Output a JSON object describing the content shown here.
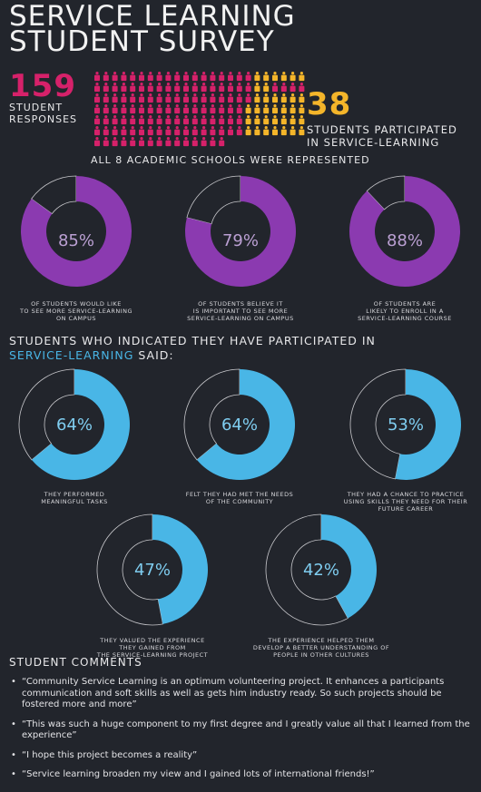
{
  "title": [
    "SERVICE LEARNING",
    "STUDENT SURVEY"
  ],
  "responses": {
    "number": "159",
    "label_1": "STUDENT",
    "label_2": "RESPONSES",
    "color": "#d6216a"
  },
  "participated": {
    "number": "38",
    "label_1": "STUDENTS PARTICIPATED",
    "label_2": "IN SERVICE-LEARNING",
    "color": "#f4b52a"
  },
  "schools_note": "ALL 8 ACADEMIC SCHOOLS WERE REPRESENTED",
  "pictogram": {
    "total": 159,
    "highlighted": 38
  },
  "chart_data": [
    {
      "type": "pie",
      "title": "",
      "values": [
        85,
        15
      ],
      "percent_label": "85%",
      "caption": [
        "OF STUDENTS  WOULD LIKE",
        "TO SEE MORE SERVICE-LEARNING",
        "ON CAMPUS"
      ],
      "color": "#8b3ab0"
    },
    {
      "type": "pie",
      "title": "",
      "values": [
        79,
        21
      ],
      "percent_label": "79%",
      "caption": [
        "OF STUDENTS BELIEVE IT",
        "IS IMPORTANT TO SEE MORE",
        "SERVICE-LEARNING ON CAMPUS"
      ],
      "color": "#8b3ab0"
    },
    {
      "type": "pie",
      "title": "",
      "values": [
        88,
        12
      ],
      "percent_label": "88%",
      "caption": [
        "OF STUDENTS ARE",
        "LIKELY  TO ENROLL IN A",
        "SERVICE-LEARNING COURSE"
      ],
      "color": "#8b3ab0"
    },
    {
      "type": "pie",
      "title": "",
      "values": [
        64,
        36
      ],
      "percent_label": "64%",
      "caption": [
        "THEY PERFORMED",
        "MEANINGFUL TASKS"
      ],
      "color": "#49b6e6"
    },
    {
      "type": "pie",
      "title": "",
      "values": [
        64,
        36
      ],
      "percent_label": "64%",
      "caption": [
        "FELT THEY HAD MET THE NEEDS",
        "OF THE COMMUNITY"
      ],
      "color": "#49b6e6"
    },
    {
      "type": "pie",
      "title": "",
      "values": [
        53,
        47
      ],
      "percent_label": "53%",
      "caption": [
        "THEY HAD A CHANCE TO PRACTICE",
        "USING SKILLS THEY NEED FOR THEIR",
        "FUTURE CAREER"
      ],
      "color": "#49b6e6"
    },
    {
      "type": "pie",
      "title": "",
      "values": [
        47,
        53
      ],
      "percent_label": "47%",
      "caption": [
        "THEY VALUED THE EXPERIENCE",
        "THEY GAINED FROM",
        "THE SERVICE-LEARNING PROJECT"
      ],
      "color": "#49b6e6"
    },
    {
      "type": "pie",
      "title": "",
      "values": [
        42,
        58
      ],
      "percent_label": "42%",
      "caption": [
        "THE EXPERIENCE HELPED THEM",
        "DEVELOP A BETTER  UNDERSTANDING OF",
        "PEOPLE IN OTHER CULTURES"
      ],
      "color": "#49b6e6"
    }
  ],
  "participants_heading": {
    "line1": "STUDENTS WHO INDICATED THEY HAVE PARTICIPATED IN",
    "highlight": "SERVICE-LEARNING",
    "rest": " SAID:"
  },
  "comments": {
    "heading": "STUDENT COMMENTS",
    "items": [
      "“Community Service Learning is an optimum volunteering project. It enhances a participants communication and soft skills as well as gets him industry ready.  So such projects should be fostered more and more”",
      "“This was such a huge component to my first degree and I greatly value all that I learned from the experience”",
      "“I hope this project becomes a reality”",
      "“Service learning broaden my view and I gained lots of international friends!”"
    ]
  }
}
